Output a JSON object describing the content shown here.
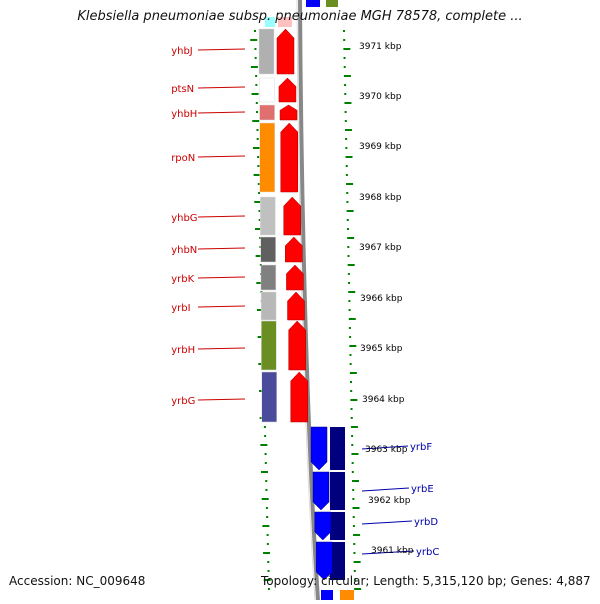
{
  "title": "Klebsiella pneumoniae subsp. pneumoniae MGH 78578, complete ...",
  "accession": "Accession: NC_009648",
  "summary": "Topology: circular; Length: 5,315,120 bp; Genes: 4,887",
  "colors": {
    "forward_arrow": "#ff0000",
    "reverse_arrow": "#0000ff",
    "reverse_dark": "#00007f",
    "left_label": "#cc0000",
    "right_label": "#0000aa",
    "tick": "#008000",
    "backbone": "#888888"
  },
  "ruler": [
    {
      "label": "3971 kbp"
    },
    {
      "label": "3970 kbp"
    },
    {
      "label": "3969 kbp"
    },
    {
      "label": "3968 kbp"
    },
    {
      "label": "3967 kbp"
    },
    {
      "label": "3966 kbp"
    },
    {
      "label": "3965 kbp"
    },
    {
      "label": "3964 kbp"
    },
    {
      "label": "3963 kbp"
    },
    {
      "label": "3962 kbp"
    },
    {
      "label": "3961 kbp"
    }
  ],
  "genes_forward": [
    {
      "name": "yhbJ",
      "color": "#b0b0b0"
    },
    {
      "name": "ptsN",
      "color": "#ffffff"
    },
    {
      "name": "yhbH",
      "color": "#e07070"
    },
    {
      "name": "rpoN",
      "color": "#ff8c00"
    },
    {
      "name": "yhbG",
      "color": "#c0c0c0"
    },
    {
      "name": "yhbN",
      "color": "#606060"
    },
    {
      "name": "yrbK",
      "color": "#808080"
    },
    {
      "name": "yrbI",
      "color": "#b8b8b8"
    },
    {
      "name": "yrbH",
      "color": "#6b8e23"
    },
    {
      "name": "yrbG",
      "color": "#4b4b9b"
    }
  ],
  "genes_reverse": [
    {
      "name": "yrbF"
    },
    {
      "name": "yrbE"
    },
    {
      "name": "yrbD"
    },
    {
      "name": "yrbC"
    }
  ]
}
